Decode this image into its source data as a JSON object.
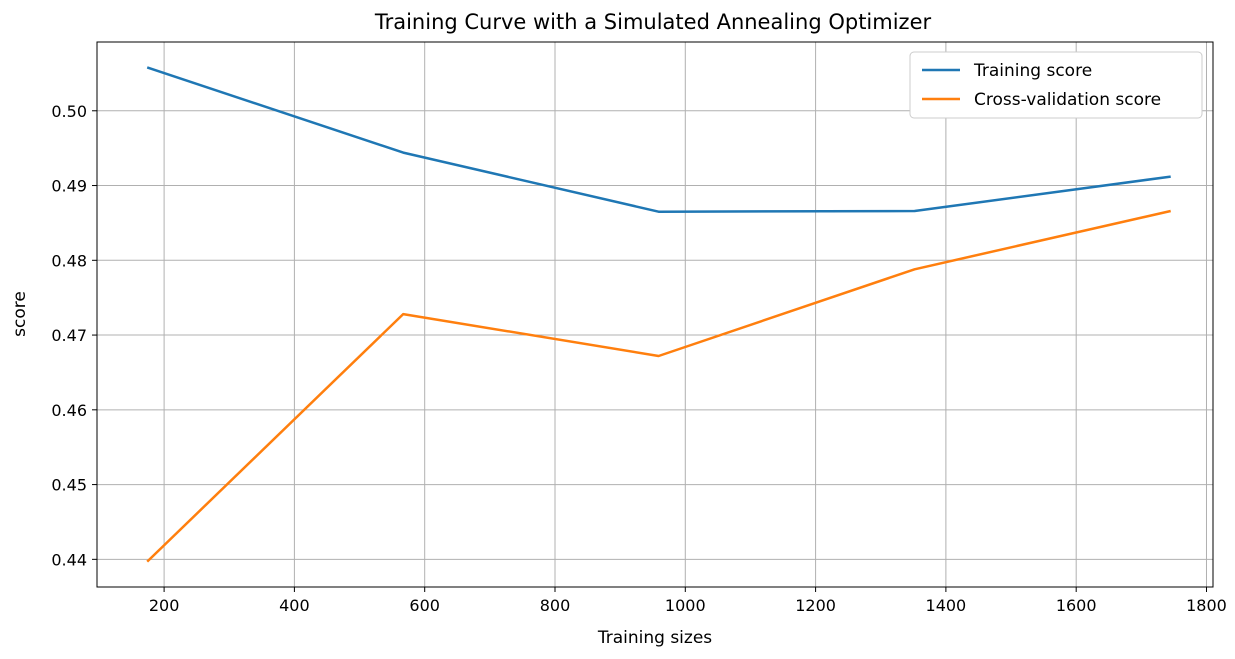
{
  "chart_data": {
    "type": "line",
    "title": "Training Curve with a Simulated Annealing Optimizer",
    "xlabel": "Training sizes",
    "ylabel": "score",
    "xlim": [
      97,
      1810
    ],
    "ylim": [
      0.4363,
      0.5092
    ],
    "xticks": [
      200,
      400,
      600,
      800,
      1000,
      1200,
      1400,
      1600,
      1800
    ],
    "yticks": [
      0.44,
      0.45,
      0.46,
      0.47,
      0.48,
      0.49,
      0.5
    ],
    "ytick_labels": [
      "0.44",
      "0.45",
      "0.46",
      "0.47",
      "0.48",
      "0.49",
      "0.50"
    ],
    "grid": true,
    "legend_position": "top-right",
    "x": [
      174,
      567,
      959,
      1352,
      1745
    ],
    "series": [
      {
        "name": "Training score",
        "color": "#1f77b4",
        "values": [
          0.5058,
          0.4944,
          0.4865,
          0.4866,
          0.4912
        ]
      },
      {
        "name": "Cross-validation score",
        "color": "#ff7f0e",
        "values": [
          0.4397,
          0.4728,
          0.4672,
          0.4788,
          0.4866
        ]
      }
    ]
  }
}
